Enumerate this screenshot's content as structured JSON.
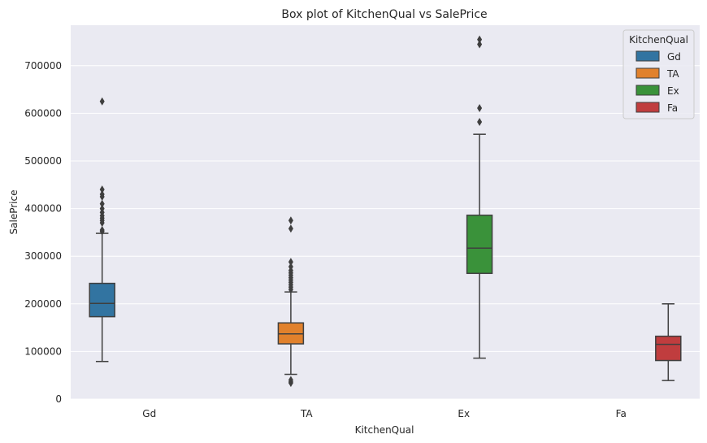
{
  "chart_data": {
    "type": "box",
    "title": "Box plot of KitchenQual vs SalePrice",
    "xlabel": "KitchenQual",
    "ylabel": "SalePrice",
    "categories": [
      "Gd",
      "TA",
      "Ex",
      "Fa"
    ],
    "ylim": [
      0,
      785000
    ],
    "yticks": [
      0,
      100000,
      200000,
      300000,
      400000,
      500000,
      600000,
      700000
    ],
    "ytick_labels": [
      "0",
      "100000",
      "200000",
      "300000",
      "400000",
      "500000",
      "600000",
      "700000"
    ],
    "grid": true,
    "legend": {
      "title": "KitchenQual",
      "placement": "top-right",
      "entries": [
        "Gd",
        "TA",
        "Ex",
        "Fa"
      ]
    },
    "series": [
      {
        "name": "Gd",
        "category": "Gd",
        "color": "#3274a1",
        "hue_slot": 0,
        "whisker_low": 79000,
        "q1": 173000,
        "median": 201000,
        "q3": 243000,
        "whisker_high": 348000,
        "outliers": [
          352000,
          355000,
          370000,
          375000,
          380000,
          385000,
          392000,
          400000,
          410000,
          425000,
          430000,
          440000,
          625000
        ]
      },
      {
        "name": "TA",
        "category": "TA",
        "color": "#e1812c",
        "hue_slot": 1,
        "whisker_low": 52000,
        "q1": 116000,
        "median": 137000,
        "q3": 160000,
        "whisker_high": 225000,
        "outliers": [
          34000,
          36000,
          40000,
          230000,
          235000,
          240000,
          245000,
          250000,
          255000,
          260000,
          265000,
          270000,
          278000,
          288000,
          358000,
          375000
        ]
      },
      {
        "name": "Ex",
        "category": "Ex",
        "color": "#3a923a",
        "hue_slot": 2,
        "whisker_low": 86000,
        "q1": 264000,
        "median": 317000,
        "q3": 386000,
        "whisker_high": 556000,
        "outliers": [
          582000,
          611000,
          745000,
          755000
        ]
      },
      {
        "name": "Fa",
        "category": "Fa",
        "color": "#c03d3e",
        "hue_slot": 3,
        "whisker_low": 39000,
        "q1": 81000,
        "median": 115000,
        "q3": 132000,
        "whisker_high": 200000,
        "outliers": []
      }
    ]
  }
}
